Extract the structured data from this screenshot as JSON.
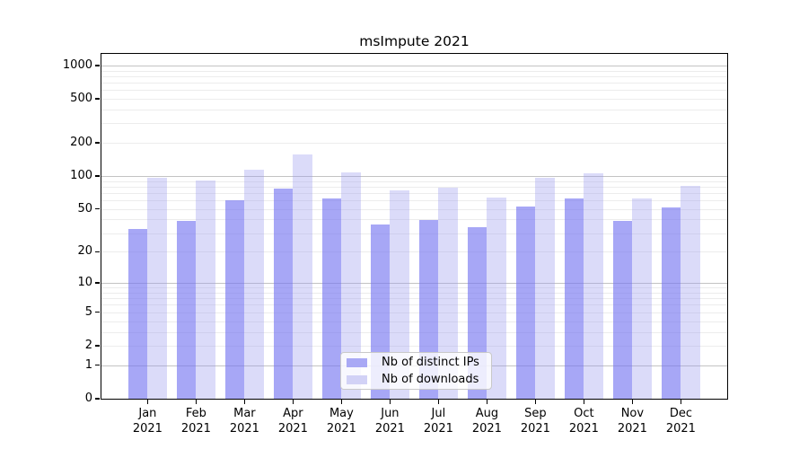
{
  "title": "msImpute 2021",
  "colors": {
    "bar_ips": "rgba(116,116,241,0.63)",
    "bar_downloads": "rgba(155,155,238,0.36)",
    "legend_swatch_ips": "#a9a9f5",
    "legend_swatch_downloads": "#d2d2f6",
    "grid_major": "#c3c3c3",
    "grid_minor": "#ececec",
    "axis_color": "#000000",
    "background": "#ffffff"
  },
  "legend": {
    "items": [
      {
        "label": "Nb of distinct IPs",
        "swatch": "#a9a9f5"
      },
      {
        "label": "Nb of downloads",
        "swatch": "#d2d2f6"
      }
    ]
  },
  "axes": {
    "y_tick_labels": [
      "0",
      "1",
      "2",
      "5",
      "10",
      "20",
      "50",
      "100",
      "200",
      "500",
      "1000"
    ],
    "x_month_labels": [
      "Jan",
      "Feb",
      "Mar",
      "Apr",
      "May",
      "Jun",
      "Jul",
      "Aug",
      "Sep",
      "Oct",
      "Nov",
      "Dec"
    ],
    "x_year_label": "2021"
  },
  "chart_data": {
    "type": "bar",
    "title": "msImpute 2021",
    "categories": [
      "Jan 2021",
      "Feb 2021",
      "Mar 2021",
      "Apr 2021",
      "May 2021",
      "Jun 2021",
      "Jul 2021",
      "Aug 2021",
      "Sep 2021",
      "Oct 2021",
      "Nov 2021",
      "Dec 2021"
    ],
    "series": [
      {
        "name": "Nb of distinct IPs",
        "values": [
          33,
          39,
          60,
          77,
          63,
          36,
          40,
          34,
          53,
          62,
          39,
          52
        ]
      },
      {
        "name": "Nb of downloads",
        "values": [
          97,
          91,
          114,
          157,
          107,
          74,
          78,
          64,
          96,
          106,
          62,
          82
        ]
      }
    ],
    "xlabel": "",
    "ylabel": "",
    "yscale": "log1p",
    "y_ticks": [
      0,
      1,
      2,
      5,
      10,
      20,
      50,
      100,
      200,
      500,
      1000
    ],
    "ylim": [
      0,
      1270
    ],
    "grid": "horizontal",
    "legend_position": "lower-center-inside"
  }
}
